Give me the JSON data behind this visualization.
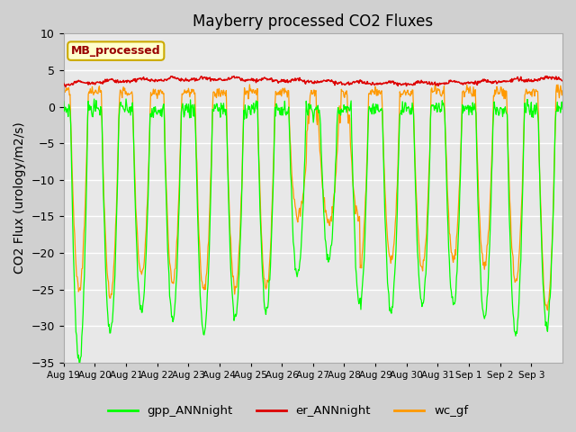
{
  "title": "Mayberry processed CO2 Fluxes",
  "ylabel": "CO2 Flux (urology/m2/s)",
  "ylim": [
    -35,
    10
  ],
  "yticks": [
    -35,
    -30,
    -25,
    -20,
    -15,
    -10,
    -5,
    0,
    5,
    10
  ],
  "xtick_labels": [
    "Aug 19",
    "Aug 20",
    "Aug 21",
    "Aug 22",
    "Aug 23",
    "Aug 24",
    "Aug 25",
    "Aug 26",
    "Aug 27",
    "Aug 28",
    "Aug 29",
    "Aug 30",
    "Aug 31",
    "Sep 1",
    "Sep 2",
    "Sep 3"
  ],
  "colors": {
    "gpp": "#00ff00",
    "er": "#dd0000",
    "wc": "#ff9900"
  },
  "legend_label": "MB_processed",
  "legend_bg": "#ffffcc",
  "legend_border": "#ccaa00",
  "legend_text_color": "#990000",
  "line_labels": [
    "gpp_ANNnight",
    "er_ANNnight",
    "wc_gf"
  ],
  "title_fontsize": 12,
  "axis_fontsize": 10,
  "fig_facecolor": "#d0d0d0",
  "ax_facecolor": "#e8e8e8",
  "grid_color": "#ffffff",
  "n_days": 16,
  "n_per_day": 48
}
